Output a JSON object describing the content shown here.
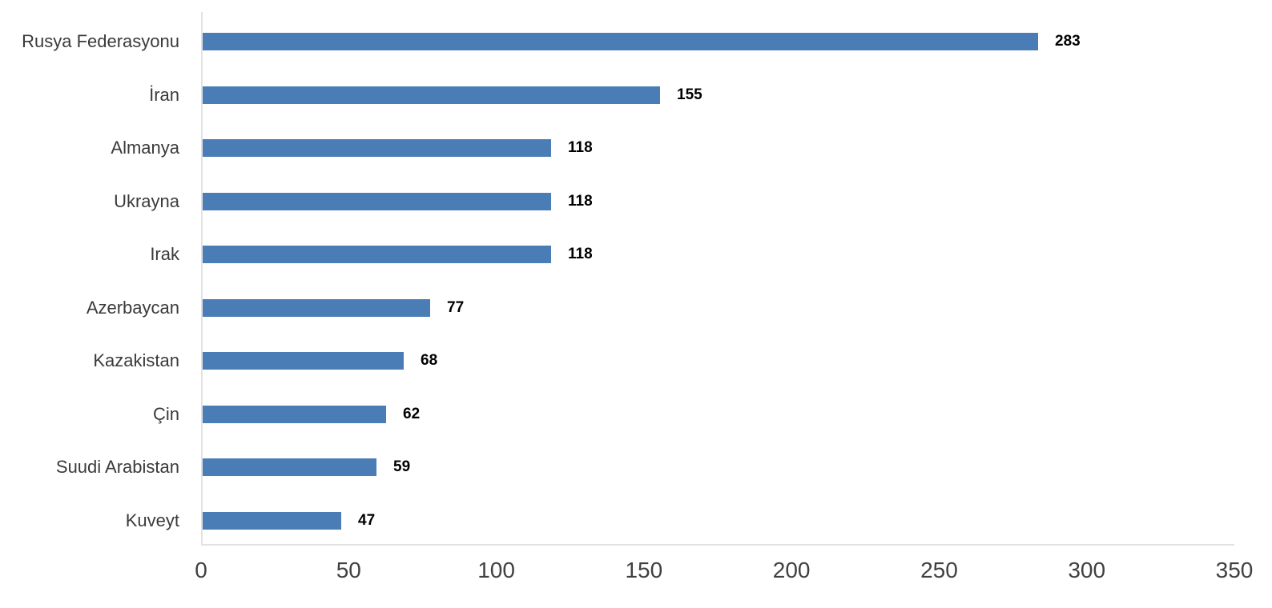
{
  "chart_data": {
    "type": "bar",
    "orientation": "horizontal",
    "title": "",
    "xlabel": "",
    "ylabel": "",
    "categories": [
      "Rusya Federasyonu",
      "İran",
      "Almanya",
      "Ukrayna",
      "Irak",
      "Azerbaycan",
      "Kazakistan",
      "Çin",
      "Suudi Arabistan",
      "Kuveyt"
    ],
    "values": [
      283,
      155,
      118,
      118,
      118,
      77,
      68,
      62,
      59,
      47
    ],
    "data_labels": [
      "283",
      "155",
      "118",
      "118",
      "118",
      "77",
      "68",
      "62",
      "59",
      "47"
    ],
    "x_ticks": [
      "0",
      "50",
      "100",
      "150",
      "200",
      "250",
      "300",
      "350"
    ],
    "x_tick_values": [
      0,
      50,
      100,
      150,
      200,
      250,
      300,
      350
    ],
    "xlim": [
      0,
      350
    ],
    "grid": false,
    "legend": false
  },
  "colors": {
    "bar": "#4a7db6",
    "axis": "#e2e2e2",
    "category_label": "#3a3a3a",
    "tick_label": "#404040",
    "value_label": "#000000",
    "background": "#ffffff"
  }
}
